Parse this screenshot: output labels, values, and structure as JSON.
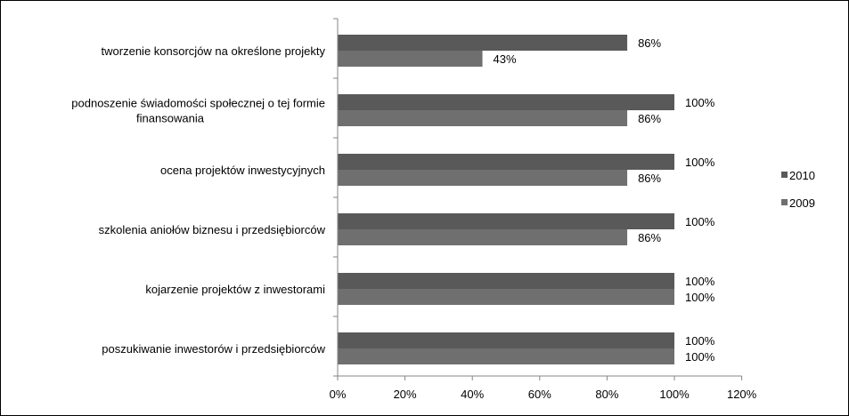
{
  "chart_data": {
    "type": "bar",
    "orientation": "horizontal",
    "categories": [
      [
        "tworzenie konsorcjów na określone projekty"
      ],
      [
        "podnoszenie świadomości społecznej o tej formie",
        "finansowania"
      ],
      [
        "ocena projektów inwestycyjnych"
      ],
      [
        "szkolenia aniołów biznesu i przedsiębiorców"
      ],
      [
        "kojarzenie projektów z inwestorami"
      ],
      [
        "poszukiwanie inwestorów i przedsiębiorców"
      ]
    ],
    "series": [
      {
        "name": "2010",
        "values": [
          86,
          100,
          100,
          100,
          100,
          100
        ],
        "data_labels": [
          "86%",
          "100%",
          "100%",
          "100%",
          "100%",
          "100%"
        ],
        "color": "#595959"
      },
      {
        "name": "2009",
        "values": [
          43,
          86,
          86,
          86,
          100,
          100
        ],
        "data_labels": [
          "43%",
          "86%",
          "86%",
          "86%",
          "100%",
          "100%"
        ],
        "color": "#6f6f6f"
      }
    ],
    "xlim": [
      0,
      120
    ],
    "x_ticks": [
      0,
      20,
      40,
      60,
      80,
      100,
      120
    ],
    "x_tick_labels": [
      "0%",
      "20%",
      "40%",
      "60%",
      "80%",
      "100%",
      "120%"
    ],
    "grid": false,
    "legend_placement": "right"
  }
}
